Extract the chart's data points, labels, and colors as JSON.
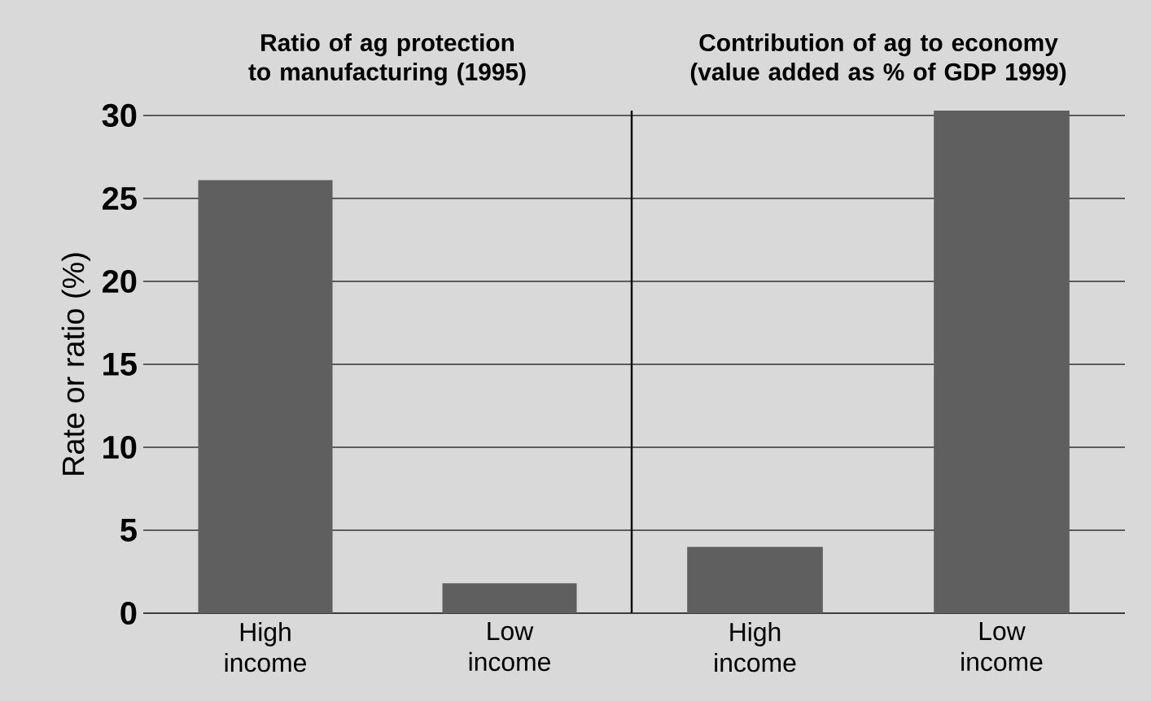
{
  "chart_data": [
    {
      "type": "bar",
      "title": "Ratio of ag protection to manufacturing (1995)",
      "categories": [
        "High income",
        "Low income"
      ],
      "values": [
        26.1,
        1.8
      ],
      "color": "#5f5f5f",
      "ylabel": "Rate or ratio (%)",
      "ylim": [
        0,
        30
      ],
      "yticks": [
        0,
        5,
        10,
        15,
        20,
        25,
        30
      ],
      "grid": "y"
    },
    {
      "type": "bar",
      "title": "Contribution of ag to economy (value added as % of GDP 1999)",
      "categories": [
        "High income",
        "Low income"
      ],
      "values": [
        4.0,
        30.3
      ],
      "color": "#5f5f5f",
      "ylim": [
        0,
        30.3
      ],
      "yticks": [
        0,
        5,
        10,
        15,
        20,
        25,
        30
      ],
      "grid": "y",
      "tick_labels": "x"
    }
  ]
}
